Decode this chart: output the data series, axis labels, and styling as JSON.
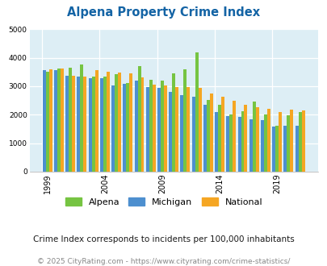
{
  "title": "Alpena Property Crime Index",
  "subtitle": "Crime Index corresponds to incidents per 100,000 inhabitants",
  "footer": "© 2025 CityRating.com - https://www.cityrating.com/crime-statistics/",
  "years": [
    1999,
    2000,
    2001,
    2002,
    2003,
    2004,
    2005,
    2006,
    2007,
    2008,
    2009,
    2010,
    2011,
    2012,
    2013,
    2014,
    2015,
    2016,
    2017,
    2018,
    2019,
    2020,
    2021
  ],
  "alpena": [
    3500,
    3620,
    3650,
    3760,
    3340,
    3340,
    3430,
    3100,
    3700,
    3230,
    3190,
    3440,
    3590,
    4180,
    2530,
    2350,
    2010,
    2110,
    2450,
    2010,
    1620,
    1980,
    2100
  ],
  "michigan": [
    3560,
    3560,
    3380,
    3340,
    3290,
    3270,
    3040,
    3090,
    3200,
    2970,
    2940,
    2810,
    2700,
    2640,
    2340,
    2080,
    1950,
    1920,
    1840,
    1820,
    1590,
    1620,
    1600
  ],
  "national": [
    3600,
    3620,
    3380,
    3350,
    3560,
    3520,
    3490,
    3450,
    3310,
    3050,
    3030,
    2970,
    2960,
    2940,
    2740,
    2620,
    2490,
    2360,
    2250,
    2210,
    2090,
    2190,
    2140
  ],
  "alpena_color": "#76c442",
  "michigan_color": "#4d8fcf",
  "national_color": "#f5a623",
  "bg_color": "#ddeef5",
  "ylim": [
    0,
    5000
  ],
  "yticks": [
    0,
    1000,
    2000,
    3000,
    4000,
    5000
  ],
  "xtick_years": [
    1999,
    2004,
    2009,
    2014,
    2019
  ],
  "title_color": "#1464a5",
  "subtitle_color": "#1a1a1a",
  "footer_color": "#888888",
  "bar_width": 0.28,
  "grid_color": "#ffffff",
  "vgrid_color": "#ccddee"
}
